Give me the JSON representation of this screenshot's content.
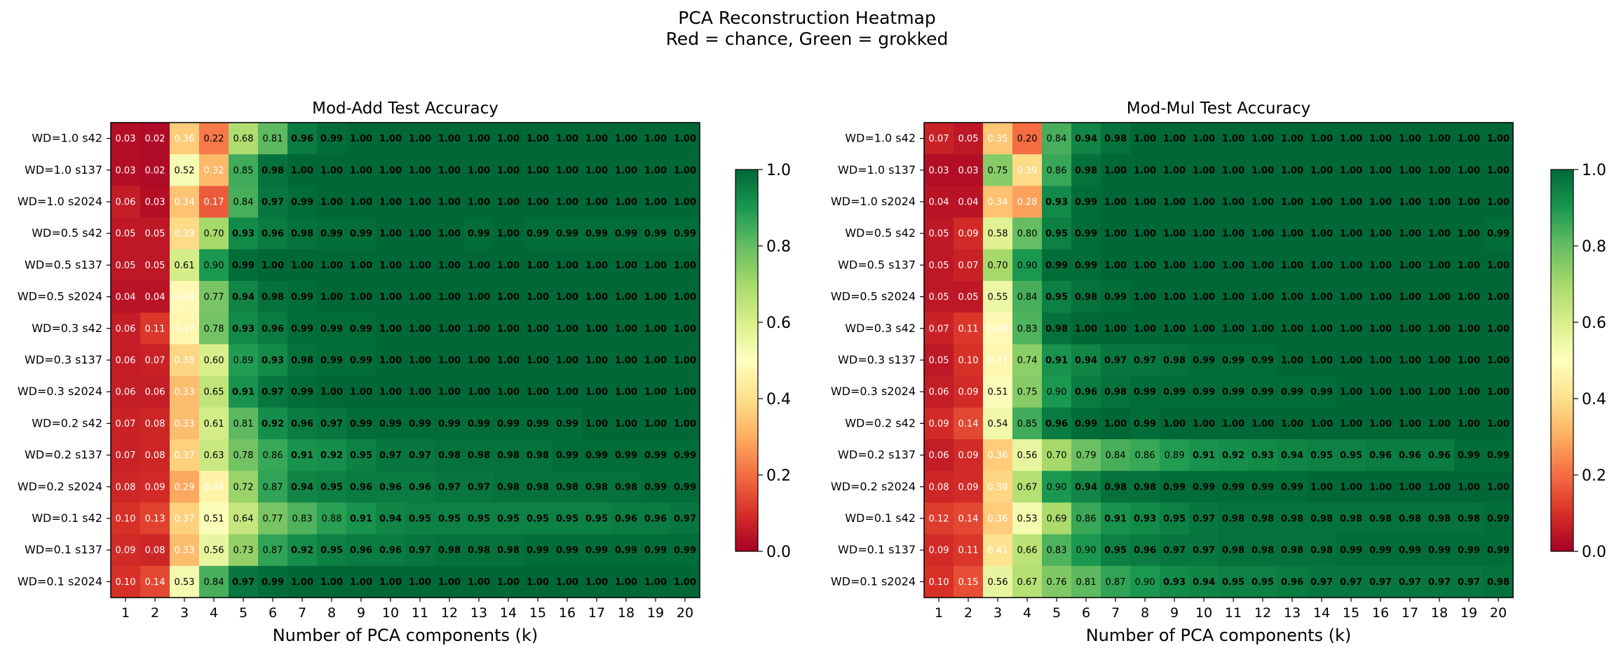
{
  "figure": {
    "title_line1": "PCA Reconstruction Heatmap",
    "title_line2": "Red = chance, Green = grokked"
  },
  "colors": {
    "cmap": [
      "#a50026",
      "#d73027",
      "#f46d43",
      "#fdae61",
      "#fee08b",
      "#ffffbf",
      "#d9ef8b",
      "#a6d96a",
      "#66bd63",
      "#1a9850",
      "#006837"
    ],
    "frame": "#000000",
    "text_light": "#ffffff",
    "text_dark": "#000000"
  },
  "chart_data": [
    {
      "type": "heatmap",
      "title": "Mod-Add Test Accuracy",
      "xlabel": "Number of PCA components (k)",
      "ylabel": "",
      "x": [
        1,
        2,
        3,
        4,
        5,
        6,
        7,
        8,
        9,
        10,
        11,
        12,
        13,
        14,
        15,
        16,
        17,
        18,
        19,
        20
      ],
      "rows": [
        "WD=1.0 s42",
        "WD=1.0 s137",
        "WD=1.0 s2024",
        "WD=0.5 s42",
        "WD=0.5 s137",
        "WD=0.5 s2024",
        "WD=0.3 s42",
        "WD=0.3 s137",
        "WD=0.3 s2024",
        "WD=0.2 s42",
        "WD=0.2 s137",
        "WD=0.2 s2024",
        "WD=0.1 s42",
        "WD=0.1 s137",
        "WD=0.1 s2024"
      ],
      "values": [
        [
          0.03,
          0.02,
          0.36,
          0.22,
          0.68,
          0.81,
          0.96,
          0.99,
          1.0,
          1.0,
          1.0,
          1.0,
          1.0,
          1.0,
          1.0,
          1.0,
          1.0,
          1.0,
          1.0,
          1.0
        ],
        [
          0.03,
          0.02,
          0.52,
          0.32,
          0.85,
          0.98,
          1.0,
          1.0,
          1.0,
          1.0,
          1.0,
          1.0,
          1.0,
          1.0,
          1.0,
          1.0,
          1.0,
          1.0,
          1.0,
          1.0
        ],
        [
          0.06,
          0.03,
          0.34,
          0.17,
          0.84,
          0.97,
          0.99,
          1.0,
          1.0,
          1.0,
          1.0,
          1.0,
          1.0,
          1.0,
          1.0,
          1.0,
          1.0,
          1.0,
          1.0,
          1.0
        ],
        [
          0.05,
          0.05,
          0.39,
          0.7,
          0.93,
          0.96,
          0.98,
          0.99,
          0.99,
          1.0,
          1.0,
          1.0,
          0.99,
          1.0,
          0.99,
          0.99,
          0.99,
          0.99,
          0.99,
          0.99
        ],
        [
          0.05,
          0.05,
          0.61,
          0.9,
          0.99,
          1.0,
          1.0,
          1.0,
          1.0,
          1.0,
          1.0,
          1.0,
          1.0,
          1.0,
          1.0,
          1.0,
          1.0,
          1.0,
          1.0,
          1.0
        ],
        [
          0.04,
          0.04,
          0.48,
          0.77,
          0.94,
          0.98,
          0.99,
          1.0,
          1.0,
          1.0,
          1.0,
          1.0,
          1.0,
          1.0,
          1.0,
          1.0,
          1.0,
          1.0,
          1.0,
          1.0
        ],
        [
          0.06,
          0.11,
          0.47,
          0.78,
          0.93,
          0.96,
          0.99,
          0.99,
          0.99,
          1.0,
          1.0,
          1.0,
          1.0,
          1.0,
          1.0,
          1.0,
          1.0,
          1.0,
          1.0,
          1.0
        ],
        [
          0.06,
          0.07,
          0.38,
          0.6,
          0.89,
          0.93,
          0.98,
          0.99,
          0.99,
          1.0,
          1.0,
          1.0,
          1.0,
          1.0,
          1.0,
          1.0,
          1.0,
          1.0,
          1.0,
          1.0
        ],
        [
          0.06,
          0.06,
          0.33,
          0.65,
          0.91,
          0.97,
          0.99,
          1.0,
          1.0,
          1.0,
          1.0,
          1.0,
          1.0,
          1.0,
          1.0,
          1.0,
          1.0,
          1.0,
          1.0,
          1.0
        ],
        [
          0.07,
          0.08,
          0.33,
          0.61,
          0.81,
          0.92,
          0.96,
          0.97,
          0.99,
          0.99,
          0.99,
          0.99,
          0.99,
          0.99,
          0.99,
          0.99,
          1.0,
          1.0,
          1.0,
          1.0
        ],
        [
          0.07,
          0.08,
          0.37,
          0.63,
          0.78,
          0.86,
          0.91,
          0.92,
          0.95,
          0.97,
          0.97,
          0.98,
          0.98,
          0.98,
          0.98,
          0.99,
          0.99,
          0.99,
          0.99,
          0.99
        ],
        [
          0.08,
          0.09,
          0.29,
          0.46,
          0.72,
          0.87,
          0.94,
          0.95,
          0.96,
          0.96,
          0.96,
          0.97,
          0.97,
          0.98,
          0.98,
          0.98,
          0.98,
          0.98,
          0.99,
          0.99
        ],
        [
          0.1,
          0.13,
          0.37,
          0.51,
          0.64,
          0.77,
          0.83,
          0.88,
          0.91,
          0.94,
          0.95,
          0.95,
          0.95,
          0.95,
          0.95,
          0.95,
          0.95,
          0.96,
          0.96,
          0.97
        ],
        [
          0.09,
          0.08,
          0.33,
          0.56,
          0.73,
          0.87,
          0.92,
          0.95,
          0.96,
          0.96,
          0.97,
          0.98,
          0.98,
          0.98,
          0.99,
          0.99,
          0.99,
          0.99,
          0.99,
          0.99
        ],
        [
          0.1,
          0.14,
          0.53,
          0.84,
          0.97,
          0.99,
          1.0,
          1.0,
          1.0,
          1.0,
          1.0,
          1.0,
          1.0,
          1.0,
          1.0,
          1.0,
          1.0,
          1.0,
          1.0,
          1.0
        ]
      ],
      "colorbar": {
        "range": [
          0,
          1
        ],
        "ticks": [
          "0.0",
          "0.2",
          "0.4",
          "0.6",
          "0.8",
          "1.0"
        ]
      }
    },
    {
      "type": "heatmap",
      "title": "Mod-Mul Test Accuracy",
      "xlabel": "Number of PCA components (k)",
      "ylabel": "",
      "x": [
        1,
        2,
        3,
        4,
        5,
        6,
        7,
        8,
        9,
        10,
        11,
        12,
        13,
        14,
        15,
        16,
        17,
        18,
        19,
        20
      ],
      "rows": [
        "WD=1.0 s42",
        "WD=1.0 s137",
        "WD=1.0 s2024",
        "WD=0.5 s42",
        "WD=0.5 s137",
        "WD=0.5 s2024",
        "WD=0.3 s42",
        "WD=0.3 s137",
        "WD=0.3 s2024",
        "WD=0.2 s42",
        "WD=0.2 s137",
        "WD=0.2 s2024",
        "WD=0.1 s42",
        "WD=0.1 s137",
        "WD=0.1 s2024"
      ],
      "values": [
        [
          0.07,
          0.05,
          0.35,
          0.2,
          0.84,
          0.94,
          0.98,
          1.0,
          1.0,
          1.0,
          1.0,
          1.0,
          1.0,
          1.0,
          1.0,
          1.0,
          1.0,
          1.0,
          1.0,
          1.0
        ],
        [
          0.03,
          0.03,
          0.75,
          0.39,
          0.86,
          0.98,
          1.0,
          1.0,
          1.0,
          1.0,
          1.0,
          1.0,
          1.0,
          1.0,
          1.0,
          1.0,
          1.0,
          1.0,
          1.0,
          1.0
        ],
        [
          0.04,
          0.04,
          0.34,
          0.28,
          0.93,
          0.99,
          1.0,
          1.0,
          1.0,
          1.0,
          1.0,
          1.0,
          1.0,
          1.0,
          1.0,
          1.0,
          1.0,
          1.0,
          1.0,
          1.0
        ],
        [
          0.05,
          0.09,
          0.58,
          0.8,
          0.95,
          0.99,
          1.0,
          1.0,
          1.0,
          1.0,
          1.0,
          1.0,
          1.0,
          1.0,
          1.0,
          1.0,
          1.0,
          1.0,
          1.0,
          0.99
        ],
        [
          0.05,
          0.07,
          0.7,
          0.9,
          0.99,
          0.99,
          1.0,
          1.0,
          1.0,
          1.0,
          1.0,
          1.0,
          1.0,
          1.0,
          1.0,
          1.0,
          1.0,
          1.0,
          1.0,
          1.0
        ],
        [
          0.05,
          0.05,
          0.55,
          0.84,
          0.95,
          0.98,
          0.99,
          1.0,
          1.0,
          1.0,
          1.0,
          1.0,
          1.0,
          1.0,
          1.0,
          1.0,
          1.0,
          1.0,
          1.0,
          1.0
        ],
        [
          0.07,
          0.11,
          0.48,
          0.83,
          0.98,
          1.0,
          1.0,
          1.0,
          1.0,
          1.0,
          1.0,
          1.0,
          1.0,
          1.0,
          1.0,
          1.0,
          1.0,
          1.0,
          1.0,
          1.0
        ],
        [
          0.05,
          0.1,
          0.47,
          0.74,
          0.91,
          0.94,
          0.97,
          0.97,
          0.98,
          0.99,
          0.99,
          0.99,
          1.0,
          1.0,
          1.0,
          1.0,
          1.0,
          1.0,
          1.0,
          1.0
        ],
        [
          0.06,
          0.09,
          0.51,
          0.75,
          0.9,
          0.96,
          0.98,
          0.99,
          0.99,
          0.99,
          0.99,
          0.99,
          0.99,
          0.99,
          1.0,
          1.0,
          1.0,
          1.0,
          1.0,
          1.0
        ],
        [
          0.09,
          0.14,
          0.54,
          0.85,
          0.96,
          0.99,
          1.0,
          0.99,
          1.0,
          1.0,
          1.0,
          1.0,
          1.0,
          1.0,
          1.0,
          1.0,
          1.0,
          1.0,
          1.0,
          1.0
        ],
        [
          0.06,
          0.09,
          0.36,
          0.56,
          0.7,
          0.79,
          0.84,
          0.86,
          0.89,
          0.91,
          0.92,
          0.93,
          0.94,
          0.95,
          0.95,
          0.96,
          0.96,
          0.96,
          0.99,
          0.99
        ],
        [
          0.08,
          0.09,
          0.38,
          0.67,
          0.9,
          0.94,
          0.98,
          0.98,
          0.99,
          0.99,
          0.99,
          0.99,
          0.99,
          1.0,
          1.0,
          1.0,
          1.0,
          1.0,
          1.0,
          1.0
        ],
        [
          0.12,
          0.14,
          0.36,
          0.53,
          0.69,
          0.86,
          0.91,
          0.93,
          0.95,
          0.97,
          0.98,
          0.98,
          0.98,
          0.98,
          0.98,
          0.98,
          0.98,
          0.98,
          0.98,
          0.99
        ],
        [
          0.09,
          0.11,
          0.41,
          0.66,
          0.83,
          0.9,
          0.95,
          0.96,
          0.97,
          0.97,
          0.98,
          0.98,
          0.98,
          0.98,
          0.99,
          0.99,
          0.99,
          0.99,
          0.99,
          0.99
        ],
        [
          0.1,
          0.15,
          0.56,
          0.67,
          0.76,
          0.81,
          0.87,
          0.9,
          0.93,
          0.94,
          0.95,
          0.95,
          0.96,
          0.97,
          0.97,
          0.97,
          0.97,
          0.97,
          0.97,
          0.98
        ]
      ],
      "colorbar": {
        "range": [
          0,
          1
        ],
        "ticks": [
          "0.0",
          "0.2",
          "0.4",
          "0.6",
          "0.8",
          "1.0"
        ]
      }
    }
  ]
}
